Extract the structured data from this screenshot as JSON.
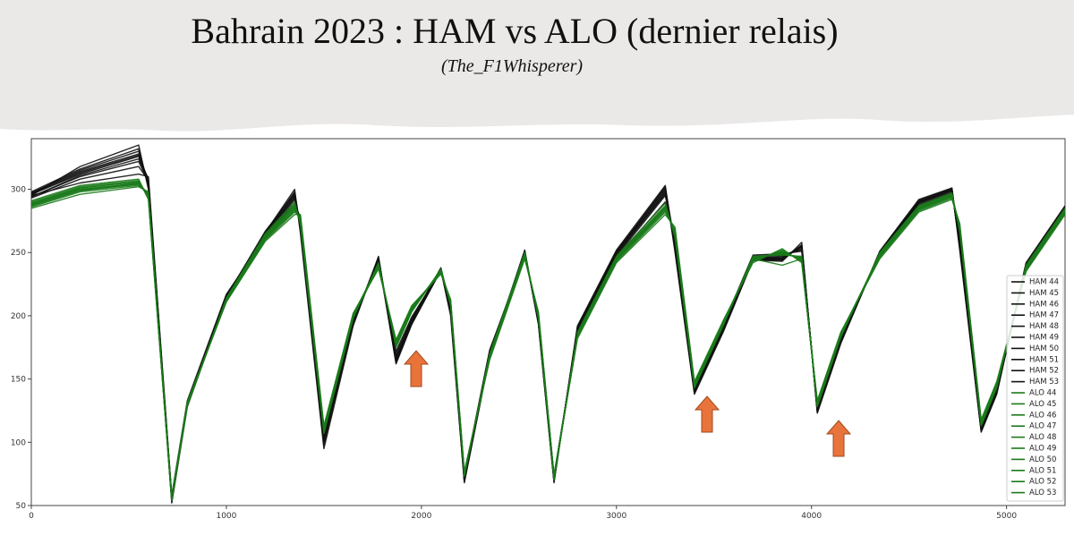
{
  "chart_data": {
    "type": "line",
    "title": "Bahrain 2023 : HAM vs ALO (dernier relais)",
    "subtitle": "(The_F1Whisperer)",
    "xlim": [
      0,
      5300
    ],
    "ylim": [
      50,
      340
    ],
    "xticks": [
      0,
      1000,
      2000,
      3000,
      4000,
      5000
    ],
    "yticks": [
      50,
      100,
      150,
      200,
      250,
      300
    ],
    "legend": "lower right",
    "x": [
      0,
      250,
      550,
      600,
      720,
      800,
      1000,
      1200,
      1350,
      1380,
      1500,
      1650,
      1780,
      1870,
      1950,
      2100,
      2150,
      2220,
      2350,
      2530,
      2600,
      2680,
      2800,
      3000,
      3250,
      3300,
      3400,
      3550,
      3700,
      3850,
      3950,
      4030,
      4150,
      4350,
      4550,
      4720,
      4760,
      4870,
      4950,
      5100,
      5300
    ],
    "series": [
      {
        "name": "HAM 44",
        "color": "#111111",
        "values": [
          297,
          315,
          330,
          305,
          55,
          130,
          215,
          265,
          298,
          270,
          100,
          195,
          245,
          165,
          195,
          237,
          205,
          70,
          170,
          250,
          195,
          70,
          190,
          250,
          302,
          255,
          140,
          190,
          245,
          245,
          255,
          125,
          180,
          250,
          290,
          300,
          255,
          110,
          140,
          240,
          285
        ]
      },
      {
        "name": "HAM 45",
        "color": "#111111",
        "values": [
          295,
          318,
          335,
          300,
          52,
          128,
          214,
          266,
          300,
          265,
          95,
          192,
          247,
          162,
          193,
          236,
          200,
          68,
          168,
          252,
          193,
          68,
          192,
          252,
          303,
          250,
          138,
          188,
          244,
          243,
          258,
          123,
          178,
          251,
          292,
          301,
          252,
          108,
          138,
          242,
          287
        ]
      },
      {
        "name": "HAM 46",
        "color": "#111111",
        "values": [
          296,
          312,
          326,
          308,
          57,
          132,
          216,
          264,
          293,
          272,
          105,
          197,
          243,
          168,
          197,
          238,
          207,
          72,
          172,
          249,
          197,
          72,
          188,
          248,
          298,
          258,
          142,
          192,
          246,
          247,
          253,
          127,
          182,
          249,
          289,
          299,
          258,
          112,
          142,
          238,
          284
        ]
      },
      {
        "name": "HAM 47",
        "color": "#111111",
        "values": [
          294,
          310,
          322,
          306,
          56,
          131,
          213,
          263,
          290,
          275,
          108,
          196,
          242,
          170,
          198,
          235,
          208,
          73,
          171,
          248,
          198,
          73,
          187,
          247,
          295,
          260,
          143,
          193,
          247,
          248,
          252,
          128,
          183,
          248,
          288,
          298,
          260,
          113,
          143,
          237,
          283
        ]
      },
      {
        "name": "HAM 48",
        "color": "#111111",
        "values": [
          298,
          316,
          332,
          302,
          54,
          129,
          215,
          267,
          296,
          268,
          98,
          194,
          246,
          164,
          194,
          237,
          203,
          69,
          169,
          251,
          194,
          69,
          191,
          251,
          301,
          253,
          139,
          189,
          245,
          244,
          256,
          124,
          179,
          250,
          291,
          300,
          254,
          109,
          139,
          241,
          286
        ]
      },
      {
        "name": "HAM 49",
        "color": "#111111",
        "values": [
          295,
          305,
          312,
          310,
          58,
          133,
          217,
          262,
          288,
          278,
          110,
          198,
          241,
          172,
          199,
          236,
          209,
          74,
          173,
          247,
          199,
          74,
          186,
          246,
          290,
          262,
          145,
          194,
          248,
          249,
          251,
          129,
          184,
          247,
          287,
          297,
          262,
          114,
          144,
          236,
          282
        ]
      },
      {
        "name": "HAM 50",
        "color": "#111111",
        "values": [
          297,
          314,
          328,
          304,
          53,
          130,
          214,
          266,
          297,
          269,
          102,
          195,
          246,
          166,
          196,
          237,
          204,
          70,
          170,
          250,
          196,
          70,
          190,
          250,
          299,
          256,
          141,
          191,
          245,
          246,
          255,
          125,
          181,
          250,
          290,
          300,
          256,
          111,
          141,
          240,
          285
        ]
      },
      {
        "name": "HAM 51",
        "color": "#111111",
        "values": [
          293,
          308,
          318,
          307,
          56,
          131,
          215,
          264,
          292,
          273,
          104,
          196,
          244,
          167,
          196,
          236,
          206,
          71,
          171,
          249,
          196,
          71,
          189,
          249,
          296,
          257,
          141,
          191,
          246,
          246,
          254,
          126,
          181,
          249,
          289,
          299,
          257,
          111,
          141,
          239,
          284
        ]
      },
      {
        "name": "HAM 52",
        "color": "#111111",
        "values": [
          296,
          313,
          327,
          306,
          55,
          130,
          216,
          265,
          294,
          271,
          103,
          195,
          245,
          165,
          195,
          237,
          205,
          70,
          170,
          250,
          195,
          70,
          190,
          250,
          297,
          255,
          140,
          190,
          245,
          245,
          255,
          125,
          180,
          250,
          290,
          300,
          255,
          110,
          140,
          240,
          285
        ]
      },
      {
        "name": "HAM 53",
        "color": "#111111",
        "values": [
          294,
          311,
          324,
          305,
          55,
          131,
          215,
          265,
          295,
          270,
          101,
          195,
          244,
          163,
          194,
          236,
          204,
          69,
          169,
          251,
          194,
          69,
          191,
          251,
          300,
          254,
          139,
          189,
          244,
          244,
          256,
          124,
          179,
          251,
          291,
          301,
          254,
          109,
          139,
          241,
          286
        ]
      },
      {
        "name": "ALO 44",
        "color": "#1a7a1a",
        "values": [
          288,
          300,
          305,
          295,
          55,
          130,
          212,
          262,
          285,
          275,
          110,
          200,
          240,
          178,
          205,
          235,
          210,
          75,
          168,
          248,
          200,
          72,
          185,
          245,
          285,
          265,
          145,
          195,
          245,
          250,
          245,
          130,
          185,
          248,
          285,
          295,
          270,
          115,
          145,
          238,
          283
        ]
      },
      {
        "name": "ALO 45",
        "color": "#1a7a1a",
        "values": [
          286,
          298,
          303,
          297,
          56,
          131,
          211,
          260,
          282,
          278,
          112,
          201,
          238,
          180,
          207,
          234,
          212,
          76,
          166,
          246,
          202,
          73,
          183,
          243,
          282,
          268,
          147,
          196,
          243,
          252,
          243,
          132,
          186,
          246,
          283,
          293,
          272,
          117,
          147,
          236,
          281
        ]
      },
      {
        "name": "ALO 46",
        "color": "#1a7a1a",
        "values": [
          290,
          302,
          307,
          293,
          54,
          129,
          213,
          264,
          288,
          273,
          108,
          199,
          241,
          176,
          204,
          236,
          209,
          74,
          169,
          249,
          199,
          71,
          186,
          246,
          287,
          263,
          144,
          194,
          246,
          249,
          246,
          129,
          184,
          249,
          286,
          296,
          268,
          114,
          144,
          239,
          284
        ]
      },
      {
        "name": "ALO 47",
        "color": "#1a7a1a",
        "values": [
          287,
          299,
          304,
          296,
          55,
          130,
          212,
          261,
          284,
          276,
          111,
          200,
          239,
          179,
          206,
          235,
          211,
          75,
          167,
          247,
          201,
          72,
          184,
          244,
          284,
          266,
          146,
          195,
          244,
          251,
          244,
          131,
          185,
          247,
          284,
          294,
          271,
          116,
          146,
          237,
          282
        ]
      },
      {
        "name": "ALO 48",
        "color": "#1a7a1a",
        "values": [
          289,
          301,
          306,
          294,
          57,
          131,
          213,
          263,
          286,
          274,
          109,
          201,
          240,
          177,
          205,
          236,
          210,
          75,
          168,
          248,
          200,
          73,
          185,
          245,
          286,
          264,
          145,
          196,
          245,
          250,
          245,
          130,
          186,
          248,
          285,
          295,
          269,
          115,
          145,
          238,
          283
        ]
      },
      {
        "name": "ALO 49",
        "color": "#1a7a1a",
        "values": [
          285,
          296,
          302,
          298,
          56,
          132,
          211,
          259,
          280,
          280,
          113,
          202,
          237,
          181,
          208,
          233,
          213,
          77,
          165,
          245,
          203,
          74,
          182,
          242,
          280,
          270,
          148,
          197,
          242,
          253,
          242,
          133,
          187,
          245,
          282,
          292,
          273,
          118,
          148,
          235,
          280
        ]
      },
      {
        "name": "ALO 50",
        "color": "#1a7a1a",
        "values": [
          291,
          303,
          308,
          292,
          54,
          129,
          214,
          265,
          290,
          272,
          107,
          198,
          242,
          175,
          203,
          237,
          208,
          73,
          170,
          250,
          198,
          70,
          187,
          247,
          289,
          262,
          143,
          193,
          247,
          248,
          247,
          128,
          183,
          250,
          287,
          297,
          267,
          113,
          143,
          240,
          285
        ]
      },
      {
        "name": "ALO 51",
        "color": "#1a7a1a",
        "values": [
          288,
          300,
          304,
          295,
          55,
          130,
          212,
          262,
          285,
          275,
          110,
          200,
          240,
          178,
          205,
          235,
          210,
          75,
          168,
          248,
          200,
          72,
          185,
          245,
          285,
          265,
          145,
          195,
          245,
          240,
          245,
          130,
          185,
          248,
          285,
          295,
          270,
          115,
          145,
          238,
          283
        ]
      },
      {
        "name": "ALO 52",
        "color": "#1a7a1a",
        "values": [
          287,
          299,
          305,
          296,
          56,
          131,
          212,
          261,
          283,
          277,
          111,
          199,
          239,
          179,
          206,
          234,
          211,
          76,
          167,
          247,
          201,
          73,
          184,
          244,
          283,
          267,
          146,
          196,
          244,
          251,
          244,
          131,
          186,
          247,
          284,
          294,
          271,
          116,
          146,
          237,
          282
        ]
      },
      {
        "name": "ALO 53",
        "color": "#1a7a1a",
        "values": [
          289,
          301,
          306,
          294,
          55,
          130,
          213,
          263,
          287,
          274,
          109,
          200,
          241,
          177,
          204,
          236,
          209,
          74,
          169,
          249,
          199,
          71,
          186,
          246,
          286,
          264,
          144,
          194,
          246,
          249,
          246,
          129,
          184,
          249,
          286,
          296,
          269,
          114,
          144,
          239,
          284
        ]
      }
    ]
  }
}
